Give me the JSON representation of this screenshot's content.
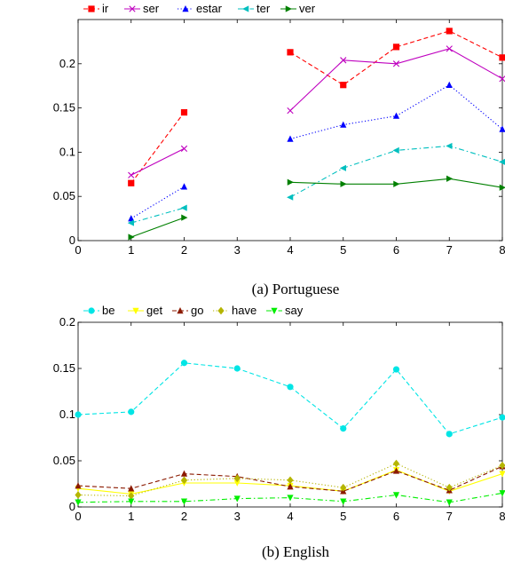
{
  "chart_data": [
    {
      "type": "line",
      "caption": "(a) Portuguese",
      "xlim": [
        0,
        8
      ],
      "ylim": [
        0,
        0.25
      ],
      "xticks": [
        0,
        1,
        2,
        3,
        4,
        5,
        6,
        7,
        8
      ],
      "yticks": [
        0,
        0.05,
        0.1,
        0.15,
        0.2
      ],
      "ytick_labels": [
        "0",
        "0.05",
        "0.1",
        "0.15",
        "0.2"
      ],
      "grid": false,
      "legend_position": "top-left, above plot",
      "series": [
        {
          "name": "ir",
          "color": "#ff0000",
          "marker": "square",
          "dash": "dashed",
          "segments": [
            [
              [
                1,
                0.065
              ],
              [
                2,
                0.145
              ]
            ],
            [
              [
                4,
                0.213
              ],
              [
                5,
                0.176
              ],
              [
                6,
                0.219
              ],
              [
                7,
                0.237
              ],
              [
                8,
                0.207
              ]
            ]
          ]
        },
        {
          "name": "ser",
          "color": "#bf00bf",
          "marker": "x",
          "dash": "solid",
          "segments": [
            [
              [
                1,
                0.074
              ],
              [
                2,
                0.104
              ]
            ],
            [
              [
                4,
                0.147
              ],
              [
                5,
                0.204
              ],
              [
                6,
                0.2
              ],
              [
                7,
                0.217
              ],
              [
                8,
                0.183
              ]
            ]
          ]
        },
        {
          "name": "estar",
          "color": "#0000ff",
          "marker": "triangle-up",
          "dash": "dotted",
          "segments": [
            [
              [
                1,
                0.025
              ],
              [
                2,
                0.061
              ]
            ],
            [
              [
                4,
                0.115
              ],
              [
                5,
                0.131
              ],
              [
                6,
                0.141
              ],
              [
                7,
                0.176
              ],
              [
                8,
                0.126
              ]
            ]
          ]
        },
        {
          "name": "ter",
          "color": "#00bfbf",
          "marker": "triangle-left",
          "dash": "dashdot",
          "segments": [
            [
              [
                1,
                0.02
              ],
              [
                2,
                0.037
              ]
            ],
            [
              [
                4,
                0.049
              ],
              [
                5,
                0.082
              ],
              [
                6,
                0.102
              ],
              [
                7,
                0.107
              ],
              [
                8,
                0.089
              ]
            ]
          ]
        },
        {
          "name": "ver",
          "color": "#008000",
          "marker": "triangle-right",
          "dash": "solid",
          "segments": [
            [
              [
                1,
                0.004
              ],
              [
                2,
                0.026
              ]
            ],
            [
              [
                4,
                0.066
              ],
              [
                5,
                0.064
              ],
              [
                6,
                0.064
              ],
              [
                7,
                0.07
              ],
              [
                8,
                0.06
              ]
            ]
          ]
        }
      ]
    },
    {
      "type": "line",
      "caption": "(b) English",
      "xlim": [
        0,
        8
      ],
      "ylim": [
        0,
        0.2
      ],
      "xticks": [
        0,
        1,
        2,
        3,
        4,
        5,
        6,
        7,
        8
      ],
      "yticks": [
        0,
        0.05,
        0.1,
        0.15,
        0.2
      ],
      "ytick_labels": [
        "0",
        "0.05",
        "0.1",
        "0.15",
        "0.2"
      ],
      "grid": false,
      "legend_position": "top-left, above plot",
      "series": [
        {
          "name": "be",
          "color": "#00e5e5",
          "marker": "circle",
          "dash": "dashed",
          "segments": [
            [
              [
                0,
                0.1
              ],
              [
                1,
                0.103
              ],
              [
                2,
                0.156
              ],
              [
                3,
                0.15
              ],
              [
                4,
                0.13
              ],
              [
                5,
                0.085
              ],
              [
                6,
                0.149
              ],
              [
                7,
                0.079
              ],
              [
                8,
                0.097
              ]
            ]
          ]
        },
        {
          "name": "get",
          "color": "#ffff00",
          "marker": "triangle-down",
          "dash": "solid",
          "segments": [
            [
              [
                0,
                0.02
              ],
              [
                1,
                0.014
              ],
              [
                2,
                0.026
              ],
              [
                3,
                0.026
              ],
              [
                4,
                0.023
              ],
              [
                5,
                0.017
              ],
              [
                6,
                0.04
              ],
              [
                7,
                0.017
              ],
              [
                8,
                0.036
              ]
            ]
          ]
        },
        {
          "name": "go",
          "color": "#8b1a00",
          "marker": "triangle-up",
          "dash": "dashed",
          "segments": [
            [
              [
                0,
                0.023
              ],
              [
                1,
                0.02
              ],
              [
                2,
                0.036
              ],
              [
                3,
                0.033
              ],
              [
                4,
                0.022
              ],
              [
                5,
                0.017
              ],
              [
                6,
                0.039
              ],
              [
                7,
                0.018
              ],
              [
                8,
                0.044
              ]
            ]
          ]
        },
        {
          "name": "have",
          "color": "#b5b500",
          "marker": "diamond",
          "dash": "dotted",
          "segments": [
            [
              [
                0,
                0.013
              ],
              [
                1,
                0.012
              ],
              [
                2,
                0.029
              ],
              [
                3,
                0.031
              ],
              [
                4,
                0.029
              ],
              [
                5,
                0.021
              ],
              [
                6,
                0.047
              ],
              [
                7,
                0.021
              ],
              [
                8,
                0.045
              ]
            ]
          ]
        },
        {
          "name": "say",
          "color": "#00ee00",
          "marker": "triangle-down",
          "dash": "dashdot",
          "segments": [
            [
              [
                0,
                0.005
              ],
              [
                1,
                0.006
              ],
              [
                2,
                0.006
              ],
              [
                3,
                0.009
              ],
              [
                4,
                0.01
              ],
              [
                5,
                0.006
              ],
              [
                6,
                0.013
              ],
              [
                7,
                0.005
              ],
              [
                8,
                0.015
              ]
            ]
          ]
        }
      ]
    }
  ]
}
